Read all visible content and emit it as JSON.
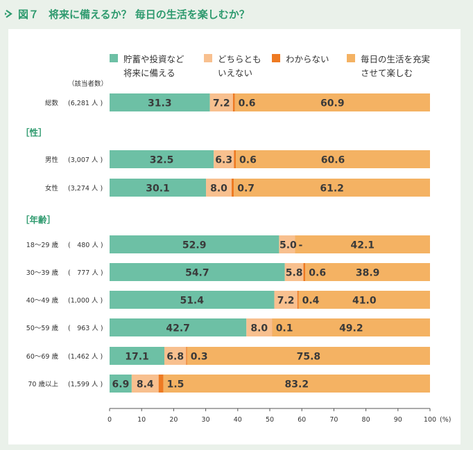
{
  "title": {
    "fig": "図７",
    "text": "将来に備えるか？ 毎日の生活を楽しむか？"
  },
  "colors": {
    "accent": "#2e9a6e",
    "series": [
      "#6dc0a5",
      "#f8c08f",
      "#ee7a22",
      "#f4b263"
    ],
    "axis": "#555555",
    "text": "#333333",
    "section": "#2e9a6e"
  },
  "chart_data": {
    "type": "bar",
    "orientation": "horizontal",
    "stacked": true,
    "count_header": "（該当者数）",
    "unit": "(%)",
    "xlim": [
      0,
      100
    ],
    "xticks": [
      "0",
      "10",
      "20",
      "30",
      "40",
      "50",
      "60",
      "70",
      "80",
      "90",
      "100"
    ],
    "series": [
      {
        "name": [
          "貯蓄や投資など",
          "将来に備える"
        ]
      },
      {
        "name": [
          "どちらとも",
          "いえない"
        ]
      },
      {
        "name": [
          "わからない"
        ]
      },
      {
        "name": [
          "毎日の生活を充実",
          "させて楽しむ"
        ]
      }
    ],
    "sections": [
      {
        "label": "［性］"
      },
      {
        "label": "［年齢］"
      }
    ],
    "rows": [
      {
        "label": "総数",
        "count": "(6,281 人 )",
        "values": [
          31.3,
          7.2,
          0.6,
          60.9
        ],
        "labels": [
          "31.3",
          "7.2",
          "0.6",
          "60.9"
        ]
      },
      {
        "label": "男性",
        "count": "(3,007 人 )",
        "values": [
          32.5,
          6.3,
          0.6,
          60.6
        ],
        "labels": [
          "32.5",
          "6.3",
          "0.6",
          "60.6"
        ]
      },
      {
        "label": "女性",
        "count": "(3,274 人 )",
        "values": [
          30.1,
          8.0,
          0.7,
          61.2
        ],
        "labels": [
          "30.1",
          "8.0",
          "0.7",
          "61.2"
        ]
      },
      {
        "label": "18～29 歳",
        "count": "(　480 人 )",
        "values": [
          52.9,
          5.0,
          0,
          42.1
        ],
        "labels": [
          "52.9",
          "5.0",
          "-",
          "42.1"
        ]
      },
      {
        "label": "30～39 歳",
        "count": "(　777 人 )",
        "values": [
          54.7,
          5.8,
          0.6,
          38.9
        ],
        "labels": [
          "54.7",
          "5.8",
          "0.6",
          "38.9"
        ]
      },
      {
        "label": "40～49 歳",
        "count": "(1,000 人 )",
        "values": [
          51.4,
          7.2,
          0.4,
          41.0
        ],
        "labels": [
          "51.4",
          "7.2",
          "0.4",
          "41.0"
        ]
      },
      {
        "label": "50～59 歳",
        "count": "(　963 人 )",
        "values": [
          42.7,
          8.0,
          0.1,
          49.2
        ],
        "labels": [
          "42.7",
          "8.0",
          "0.1",
          "49.2"
        ]
      },
      {
        "label": "60～69 歳",
        "count": "(1,462 人 )",
        "values": [
          17.1,
          6.8,
          0.3,
          75.8
        ],
        "labels": [
          "17.1",
          "6.8",
          "0.3",
          "75.8"
        ]
      },
      {
        "label": "70 歳以上",
        "count": "(1,599 人 )",
        "values": [
          6.9,
          8.4,
          1.5,
          83.2
        ],
        "labels": [
          "6.9",
          "8.4",
          "1.5",
          "83.2"
        ]
      }
    ]
  }
}
